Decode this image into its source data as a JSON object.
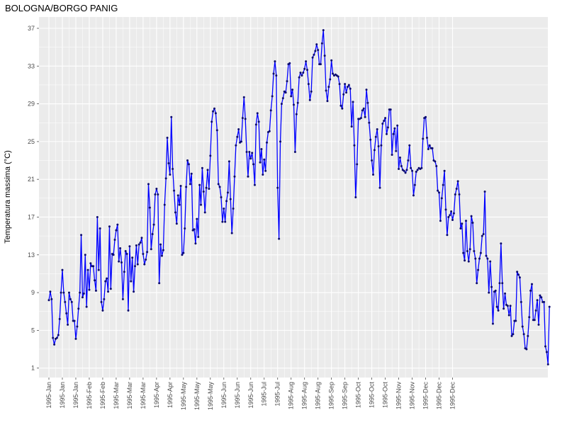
{
  "chart_data": {
    "type": "line",
    "title": "BOLOGNA/BORGO PANIG",
    "xlabel": "",
    "ylabel": "Temperatura massima  (°C)",
    "ylim": [
      0,
      38.2
    ],
    "yticks": [
      1,
      5,
      9,
      13,
      17,
      21,
      25,
      29,
      33,
      37
    ],
    "x_range": [
      "1995-01-01",
      "1995-12-31"
    ],
    "xticks": [
      {
        "date": "1995-01-01",
        "label": "1995-Jan"
      },
      {
        "date": "1995-01-11",
        "label": "1995-Jan"
      },
      {
        "date": "1995-01-21",
        "label": "1995-Jan"
      },
      {
        "date": "1995-01-31",
        "label": "1995-Feb"
      },
      {
        "date": "1995-02-10",
        "label": "1995-Feb"
      },
      {
        "date": "1995-02-20",
        "label": "1995-Mar"
      },
      {
        "date": "1995-03-02",
        "label": "1995-Mar"
      },
      {
        "date": "1995-03-12",
        "label": "1995-Mar"
      },
      {
        "date": "1995-03-22",
        "label": "1995-Apr"
      },
      {
        "date": "1995-04-01",
        "label": "1995-Apr"
      },
      {
        "date": "1995-04-11",
        "label": "1995-May"
      },
      {
        "date": "1995-04-21",
        "label": "1995-May"
      },
      {
        "date": "1995-05-01",
        "label": "1995-May"
      },
      {
        "date": "1995-05-11",
        "label": "1995-Jun"
      },
      {
        "date": "1995-05-21",
        "label": "1995-Jun"
      },
      {
        "date": "1995-05-31",
        "label": "1995-Jun"
      },
      {
        "date": "1995-06-10",
        "label": "1995-Jul"
      },
      {
        "date": "1995-06-20",
        "label": "1995-Jul"
      },
      {
        "date": "1995-06-30",
        "label": "1995-Aug"
      },
      {
        "date": "1995-07-10",
        "label": "1995-Aug"
      },
      {
        "date": "1995-07-20",
        "label": "1995-Aug"
      },
      {
        "date": "1995-07-30",
        "label": "1995-Sep"
      },
      {
        "date": "1995-08-09",
        "label": "1995-Sep"
      },
      {
        "date": "1995-08-19",
        "label": "1995-Oct"
      },
      {
        "date": "1995-08-29",
        "label": "1995-Oct"
      },
      {
        "date": "1995-09-08",
        "label": "1995-Oct"
      },
      {
        "date": "1995-09-18",
        "label": "1995-Nov"
      },
      {
        "date": "1995-09-28",
        "label": "1995-Nov"
      },
      {
        "date": "1995-10-08",
        "label": "1995-Dec"
      },
      {
        "date": "1995-10-18",
        "label": "1995-Dec"
      },
      {
        "date": "1995-10-28",
        "label": "1995-Dec"
      }
    ],
    "grid": true,
    "legend": "none",
    "colors": {
      "line": "#0000ff",
      "point": "#0b0b6e",
      "panel_background": "#ebebeb",
      "grid": "#ffffff",
      "text": "#4d4d4d"
    },
    "series": [
      {
        "start_date": "1995-01-01",
        "step_days": 1,
        "values": [
          8.2,
          9.1,
          8.3,
          4.2,
          3.5,
          4.1,
          4.2,
          4.5,
          6.2,
          9.0,
          11.4,
          9.0,
          8.0,
          6.8,
          5.6,
          9.0,
          8.3,
          8.0,
          6.0,
          6.0,
          4.1,
          5.4,
          7.3,
          9.0,
          15.1,
          8.5,
          8.9,
          13.0,
          7.5,
          11.4,
          9.3,
          12.1,
          11.8,
          11.8,
          10.3,
          9.2,
          17.0,
          11.4,
          15.8,
          8.0,
          7.1,
          8.3,
          10.2,
          10.5,
          9.1,
          16.0,
          9.4,
          13.1,
          13.0,
          14.6,
          15.6,
          16.2,
          12.3,
          13.7,
          12.2,
          8.3,
          11.2,
          13.4,
          13.1,
          7.1,
          13.9,
          10.2,
          12.7,
          9.1,
          11.8,
          14.0,
          12.0,
          14.1,
          14.3,
          14.8,
          13.1,
          12.0,
          12.5,
          13.3,
          20.5,
          18.0,
          13.6,
          15.2,
          16.2,
          19.4,
          20.0,
          19.4,
          10.0,
          14.1,
          12.9,
          13.5,
          18.3,
          21.1,
          25.4,
          22.7,
          21.5,
          27.6,
          22.1,
          19.8,
          17.5,
          16.3,
          19.3,
          18.3,
          20.3,
          13.0,
          13.2,
          15.8,
          20.2,
          23.0,
          22.6,
          20.5,
          21.6,
          15.6,
          15.7,
          14.2,
          16.8,
          14.9,
          20.4,
          18.3,
          22.2,
          19.7,
          17.5,
          20.1,
          22.0,
          20.0,
          23.5,
          27.1,
          28.2,
          28.5,
          28.0,
          26.2,
          20.5,
          20.2,
          19.1,
          16.5,
          17.9,
          16.5,
          18.7,
          19.6,
          22.9,
          18.9,
          15.3,
          17.9,
          21.3,
          24.6,
          25.5,
          26.3,
          24.9,
          25.0,
          27.5,
          29.7,
          27.4,
          23.9,
          21.3,
          23.9,
          23.2,
          23.8,
          22.6,
          20.4,
          26.8,
          28.0,
          27.1,
          22.8,
          24.2,
          21.5,
          23.1,
          21.9,
          24.9,
          26.0,
          26.1,
          28.3,
          29.8,
          32.2,
          33.5,
          32.0,
          20.1,
          14.7,
          25.0,
          29.0,
          29.6,
          30.3,
          30.2,
          31.4,
          33.2,
          33.3,
          29.8,
          30.5,
          28.9,
          23.9,
          27.9,
          29.1,
          31.8,
          32.3,
          32.0,
          32.3,
          32.7,
          33.5,
          32.6,
          31.1,
          29.4,
          30.3,
          33.9,
          34.2,
          34.6,
          35.3,
          34.7,
          33.2,
          33.2,
          35.4,
          36.8,
          34.1,
          30.4,
          29.3,
          30.8,
          31.6,
          33.6,
          32.2,
          32.0,
          32.1,
          32.0,
          31.9,
          31.1,
          28.8,
          28.5,
          30.0,
          31.1,
          30.2,
          30.8,
          31.0,
          30.6,
          26.6,
          29.2,
          24.6,
          19.1,
          22.6,
          27.4,
          27.4,
          27.5,
          28.3,
          28.5,
          27.6,
          30.5,
          29.1,
          27.0,
          25.2,
          23.0,
          21.5,
          24.1,
          25.5,
          26.3,
          24.5,
          20.1,
          24.6,
          26.9,
          27.2,
          27.5,
          25.8,
          26.5,
          28.4,
          28.4,
          23.6,
          25.8,
          26.4,
          24.0,
          26.7,
          22.1,
          23.3,
          22.4,
          22.0,
          21.9,
          21.7,
          22.0,
          23.0,
          24.6,
          22.2,
          21.9,
          19.3,
          20.4,
          21.8,
          22.0,
          22.2,
          22.1,
          22.2,
          25.3,
          27.5,
          27.6,
          25.4,
          24.2,
          24.6,
          24.3,
          24.3,
          23.0,
          22.9,
          22.4,
          19.8,
          19.6,
          16.6,
          19.0,
          20.4,
          21.9,
          17.8,
          15.1,
          17.0,
          17.2,
          17.6,
          16.7,
          17.4,
          19.4,
          20.0,
          20.8,
          19.4,
          15.8,
          16.3,
          13.2,
          12.4,
          16.6,
          13.4,
          12.3,
          13.6,
          17.1,
          16.4,
          13.4,
          12.6,
          10.0,
          11.4,
          12.6,
          13.2,
          15.0,
          15.2,
          19.7,
          12.9,
          12.6,
          9.0,
          12.3,
          9.6,
          5.7,
          9.1,
          9.2,
          7.5,
          7.1,
          10.0,
          14.2,
          10.0,
          7.3,
          8.9,
          7.7,
          7.6,
          6.6,
          7.6,
          4.4,
          4.6,
          6.0,
          6.0,
          11.2,
          10.9,
          10.6,
          8.0,
          5.4,
          4.6,
          3.1,
          3.0,
          4.4,
          6.4,
          9.2,
          9.9,
          6.1,
          6.1,
          7.1,
          8.2,
          5.6,
          8.7,
          8.5,
          8.0,
          8.0,
          3.3,
          2.7,
          1.4,
          7.5
        ]
      }
    ]
  }
}
